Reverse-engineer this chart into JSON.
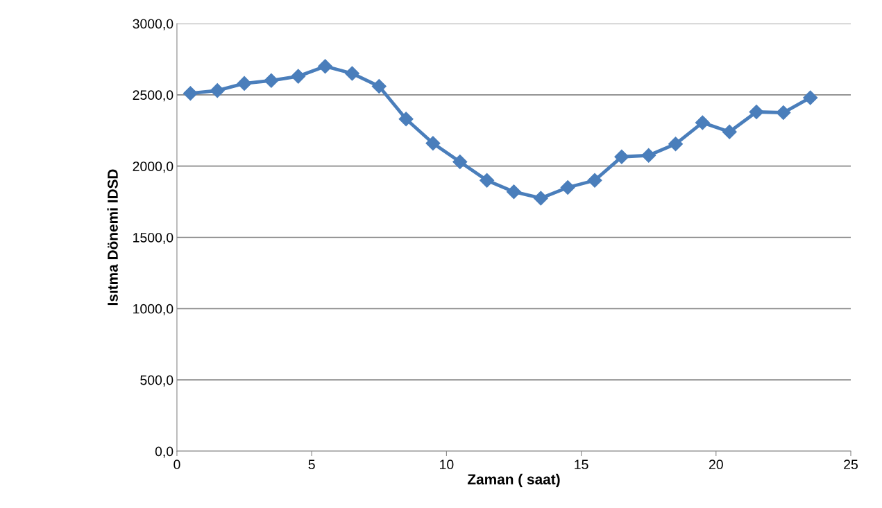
{
  "chart_data": {
    "type": "line",
    "xlabel": "Zaman ( saat)",
    "ylabel": "Isıtma Dönemi IDSD",
    "x": [
      0.5,
      1.5,
      2.5,
      3.5,
      4.5,
      5.5,
      6.5,
      7.5,
      8.5,
      9.5,
      10.5,
      11.5,
      12.5,
      13.5,
      14.5,
      15.5,
      16.5,
      17.5,
      18.5,
      19.5,
      20.5,
      21.5,
      22.5,
      23.5
    ],
    "series": [
      {
        "color": "#4a7ebb",
        "values": [
          2510,
          2530,
          2580,
          2600,
          2630,
          2700,
          2650,
          2560,
          2330,
          2160,
          2030,
          1900,
          1820,
          1775,
          1850,
          1900,
          2065,
          2075,
          2155,
          2305,
          2240,
          2380,
          2375,
          2480
        ]
      }
    ],
    "xlim": [
      0,
      25
    ],
    "xticks": [
      0,
      5,
      10,
      15,
      20,
      25
    ],
    "ylim": [
      0,
      3000
    ],
    "yticks": [
      {
        "value": 0,
        "label": "0,0"
      },
      {
        "value": 500,
        "label": "500,0"
      },
      {
        "value": 1000,
        "label": "1000,0"
      },
      {
        "value": 1500,
        "label": "1500,0"
      },
      {
        "value": 2000,
        "label": "2000,0"
      },
      {
        "value": 2500,
        "label": "2500,0"
      },
      {
        "value": 3000,
        "label": "3000,0"
      }
    ],
    "grid": "y",
    "marker": "diamond",
    "line_style": "solid"
  }
}
